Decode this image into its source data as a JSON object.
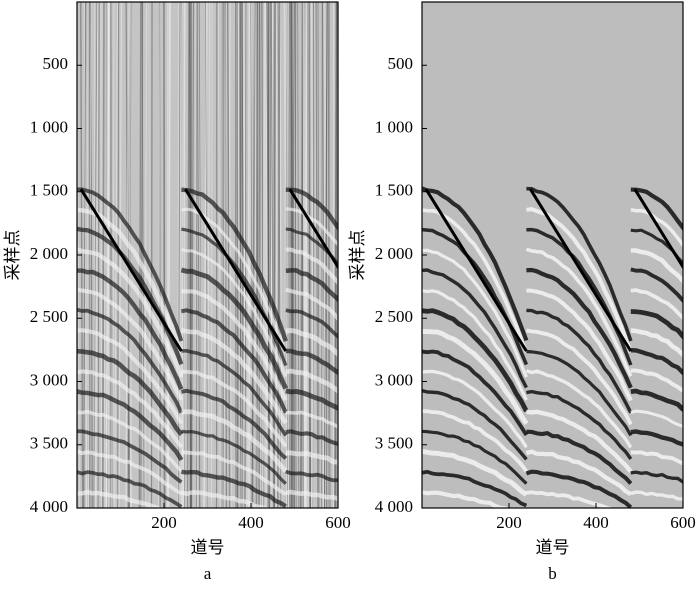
{
  "chart_data": [
    {
      "type": "seismic",
      "label": "a",
      "xlabel": "道号",
      "ylabel": "采样点",
      "xlim": [
        0,
        600
      ],
      "ylim": [
        0,
        4000
      ],
      "invert_y": true,
      "xticks": [
        200,
        400,
        600
      ],
      "yticks": [
        500,
        {
          "value": 1000,
          "label": "1 000"
        },
        {
          "value": 1500,
          "label": "1 500"
        },
        {
          "value": 2000,
          "label": "2 000"
        },
        {
          "value": 2500,
          "label": "2 500"
        },
        {
          "value": 3000,
          "label": "3 000"
        },
        {
          "value": 3500,
          "label": "3 500"
        },
        {
          "value": 4000,
          "label": "4 000"
        }
      ]
    },
    {
      "type": "seismic",
      "label": "b",
      "xlabel": "道号",
      "ylabel": "采样点",
      "xlim": [
        0,
        600
      ],
      "ylim": [
        0,
        4000
      ],
      "invert_y": true,
      "xticks": [
        200,
        400,
        600
      ],
      "yticks": [
        500,
        {
          "value": 1000,
          "label": "1 000"
        },
        {
          "value": 1500,
          "label": "1 500"
        },
        {
          "value": 2000,
          "label": "2 000"
        },
        {
          "value": 2500,
          "label": "2 500"
        },
        {
          "value": 3000,
          "label": "3 000"
        },
        {
          "value": 3500,
          "label": "3 500"
        },
        {
          "value": 4000,
          "label": "4 000"
        }
      ]
    }
  ]
}
